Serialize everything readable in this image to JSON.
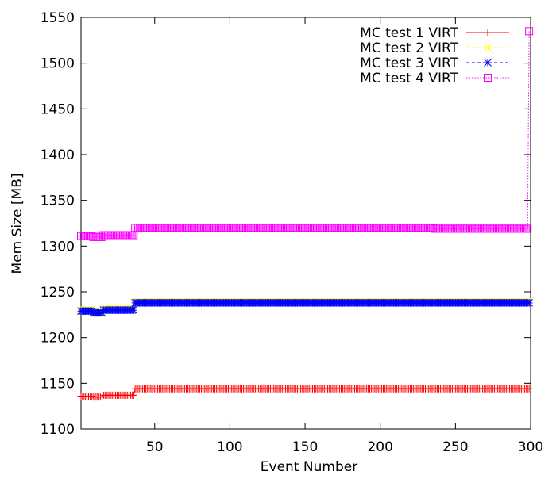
{
  "chart_data": {
    "type": "line",
    "title": "",
    "xlabel": "Event Number",
    "ylabel": "Mem Size [MB]",
    "xlim": [
      1,
      300
    ],
    "ylim": [
      1100,
      1550
    ],
    "x_ticks": [
      50,
      100,
      150,
      200,
      250,
      300
    ],
    "y_ticks": [
      1100,
      1150,
      1200,
      1250,
      1300,
      1350,
      1400,
      1450,
      1500,
      1550
    ],
    "grid": false,
    "legend_position": "top-right",
    "series": [
      {
        "name": "MC test 1 VIRT",
        "color": "#ff0000",
        "line_style": "solid",
        "marker": "plus",
        "points": [
          [
            1,
            1136
          ],
          [
            8,
            1136
          ],
          [
            9,
            1135
          ],
          [
            15,
            1135
          ],
          [
            16,
            1137
          ],
          [
            36,
            1137
          ],
          [
            37,
            1144
          ],
          [
            298,
            1144
          ],
          [
            299,
            1144
          ]
        ]
      },
      {
        "name": "MC test 2 VIRT",
        "color": "#ffff00",
        "line_style": "dashed",
        "marker": "x",
        "points": [
          [
            1,
            1230
          ],
          [
            8,
            1230
          ],
          [
            9,
            1228
          ],
          [
            15,
            1228
          ],
          [
            16,
            1231
          ],
          [
            36,
            1231
          ],
          [
            37,
            1239
          ],
          [
            298,
            1239
          ],
          [
            299,
            1239
          ]
        ]
      },
      {
        "name": "MC test 3 VIRT",
        "color": "#0000ff",
        "line_style": "dashed",
        "marker": "star",
        "points": [
          [
            1,
            1229
          ],
          [
            8,
            1229
          ],
          [
            9,
            1227
          ],
          [
            15,
            1227
          ],
          [
            16,
            1230
          ],
          [
            36,
            1230
          ],
          [
            37,
            1238
          ],
          [
            298,
            1238
          ],
          [
            299,
            1238
          ]
        ]
      },
      {
        "name": "MC test 4 VIRT",
        "color": "#ff00ff",
        "line_style": "dotted",
        "marker": "square",
        "points": [
          [
            1,
            1311
          ],
          [
            8,
            1311
          ],
          [
            9,
            1310
          ],
          [
            15,
            1310
          ],
          [
            16,
            1312
          ],
          [
            36,
            1312
          ],
          [
            37,
            1320
          ],
          [
            235,
            1320
          ],
          [
            236,
            1319
          ],
          [
            298,
            1319
          ],
          [
            299,
            1535
          ]
        ]
      }
    ]
  }
}
